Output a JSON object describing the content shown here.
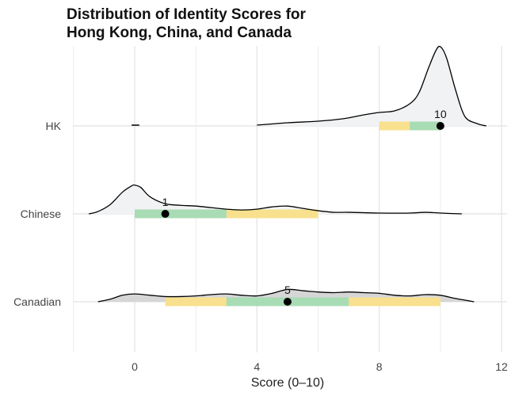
{
  "chart_data": {
    "type": "area",
    "subtype": "ridgeline",
    "title": [
      "Distribution of Identity Scores for",
      "Hong Kong, China, and Canada"
    ],
    "xlabel": "Score (0–10)",
    "ylabel": "",
    "xlim": [
      -2.0,
      12.2
    ],
    "xticks": [
      0,
      4,
      8,
      12
    ],
    "grid": true,
    "legend": "none",
    "categories": [
      "HK",
      "Chinese",
      "Canadian"
    ],
    "series": [
      {
        "name": "HK",
        "fill": "#f1f2f3",
        "median": 10,
        "median_label": "10",
        "iqr": [
          9,
          10
        ],
        "interval_80": [
          8,
          10
        ],
        "density_x": [
          4.0,
          5.0,
          6.0,
          6.8,
          7.5,
          8.0,
          8.5,
          9.0,
          9.3,
          9.6,
          9.85,
          10.0,
          10.2,
          10.5,
          10.8,
          11.2,
          11.5
        ],
        "density_y": [
          0.01,
          0.04,
          0.06,
          0.09,
          0.14,
          0.17,
          0.19,
          0.28,
          0.42,
          0.72,
          0.95,
          1.0,
          0.86,
          0.45,
          0.12,
          0.03,
          0.0
        ],
        "stray_segment": [
          -0.1,
          0.15
        ]
      },
      {
        "name": "Chinese",
        "fill": "#f1f2f3",
        "median": 1,
        "median_label": "1",
        "iqr": [
          0,
          3
        ],
        "interval_80": [
          0,
          6
        ],
        "density_x": [
          -1.5,
          -1.2,
          -0.8,
          -0.4,
          -0.1,
          0.0,
          0.2,
          0.5,
          1.0,
          1.5,
          2.0,
          2.5,
          3.0,
          3.5,
          4.0,
          4.5,
          5.0,
          5.5,
          6.0,
          6.5,
          7.0,
          8.0,
          9.0,
          9.5,
          10.0,
          10.7
        ],
        "density_y": [
          0.0,
          0.03,
          0.12,
          0.28,
          0.36,
          0.37,
          0.34,
          0.22,
          0.13,
          0.11,
          0.1,
          0.08,
          0.06,
          0.05,
          0.06,
          0.09,
          0.1,
          0.07,
          0.04,
          0.02,
          0.02,
          0.01,
          0.01,
          0.02,
          0.01,
          0.0
        ]
      },
      {
        "name": "Canadian",
        "fill": "#d6d6d6",
        "median": 5,
        "median_label": "5",
        "iqr": [
          3,
          7
        ],
        "interval_80": [
          1,
          10
        ],
        "density_x": [
          -1.2,
          -0.8,
          -0.4,
          0.0,
          0.5,
          1.0,
          1.5,
          2.0,
          2.5,
          3.0,
          3.5,
          4.0,
          4.5,
          5.0,
          5.5,
          6.0,
          6.5,
          7.0,
          7.5,
          8.0,
          8.5,
          9.0,
          9.5,
          10.0,
          10.5,
          11.1
        ],
        "density_y": [
          0.0,
          0.04,
          0.1,
          0.12,
          0.1,
          0.08,
          0.08,
          0.09,
          0.11,
          0.12,
          0.1,
          0.09,
          0.13,
          0.19,
          0.17,
          0.15,
          0.14,
          0.15,
          0.14,
          0.13,
          0.1,
          0.09,
          0.11,
          0.1,
          0.05,
          0.0
        ]
      }
    ],
    "colors": {
      "iqr": "#a8dcb4",
      "interval_80": "#f8e08e",
      "point": "#000000",
      "curve": "#000000",
      "grid": "#e6e6e6",
      "axis_text": "#444444"
    }
  }
}
